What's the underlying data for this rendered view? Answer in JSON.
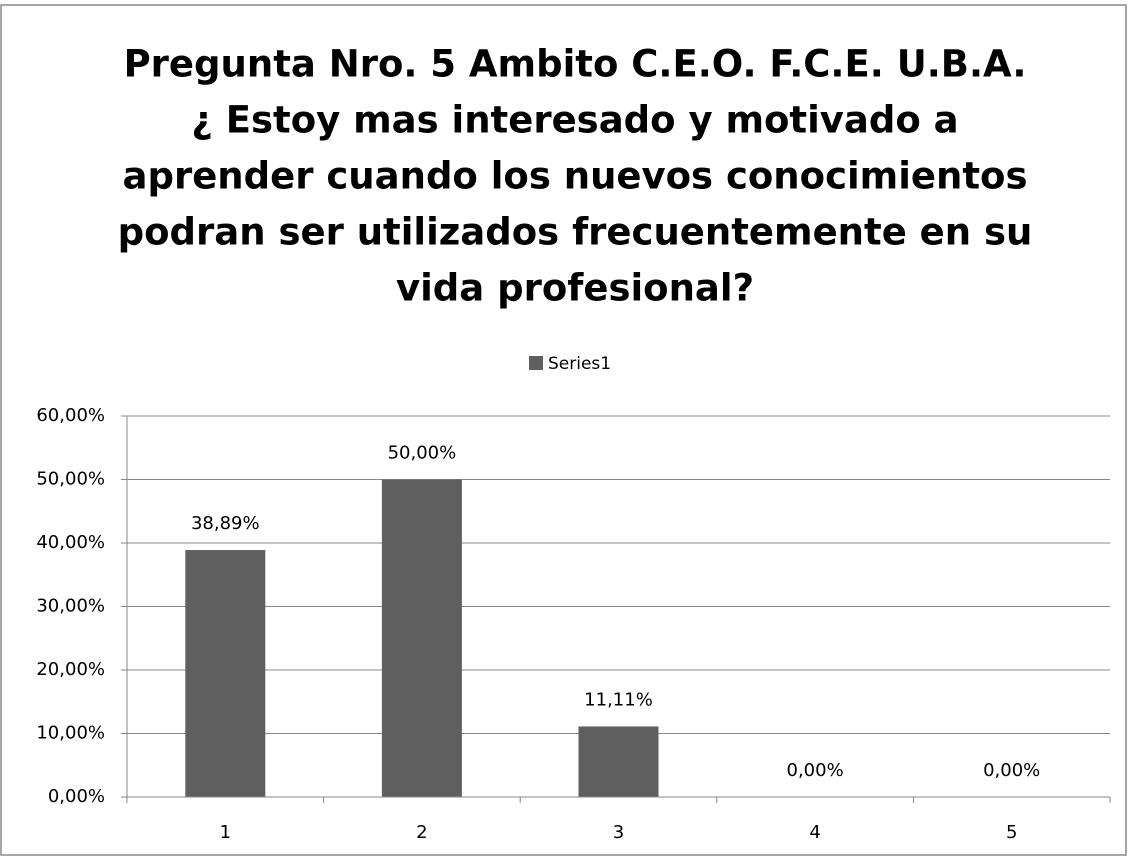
{
  "chart_data": {
    "type": "bar",
    "title": [
      "Pregunta Nro. 5 Ambito C.E.O. F.C.E. U.B.A.",
      "¿ Estoy mas interesado y motivado a",
      "aprender cuando los nuevos conocimientos",
      "podran ser utilizados frecuentemente en su",
      "vida profesional?"
    ],
    "categories": [
      "1",
      "2",
      "3",
      "4",
      "5"
    ],
    "series": [
      {
        "name": "Series1",
        "color": "#5f5f5f",
        "values": [
          38.89,
          50,
          11.11,
          0,
          0
        ],
        "value_labels": [
          "38,89%",
          "50,00%",
          "11,11%",
          "0,00%",
          "0,00%"
        ]
      }
    ],
    "ylim": [
      0,
      60
    ],
    "yticks": [
      {
        "value": 0,
        "label": "0,00%"
      },
      {
        "value": 10,
        "label": "10,00%"
      },
      {
        "value": 20,
        "label": "20,00%"
      },
      {
        "value": 30,
        "label": "30,00%"
      },
      {
        "value": 40,
        "label": "40,00%"
      },
      {
        "value": 50,
        "label": "50,00%"
      },
      {
        "value": 60,
        "label": "60,00%"
      }
    ],
    "grid": true,
    "legend": "top"
  }
}
